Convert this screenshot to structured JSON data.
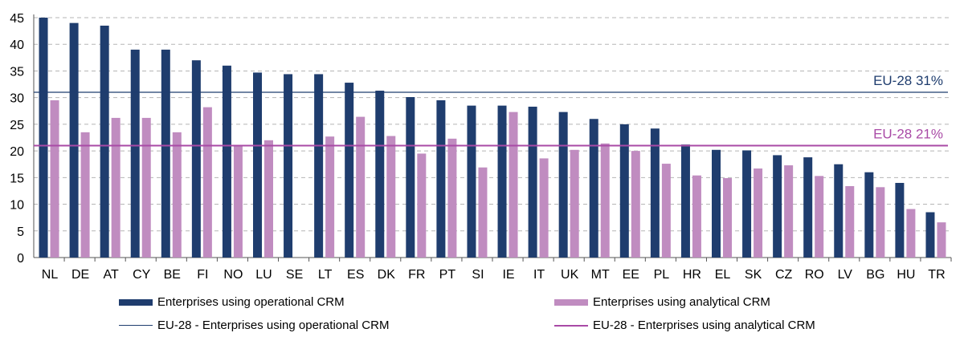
{
  "chart_data": {
    "type": "bar",
    "categories": [
      "NL",
      "DE",
      "AT",
      "CY",
      "BE",
      "FI",
      "NO",
      "LU",
      "SE",
      "LT",
      "ES",
      "DK",
      "FR",
      "PT",
      "SI",
      "IE",
      "IT",
      "UK",
      "MT",
      "EE",
      "PL",
      "HR",
      "EL",
      "SK",
      "CZ",
      "RO",
      "LV",
      "BG",
      "HU",
      "TR"
    ],
    "series": [
      {
        "name": "Enterprises using operational CRM",
        "color": "#1f3d6e",
        "values": [
          45,
          44,
          43.5,
          39,
          39,
          37,
          36,
          34.7,
          34.4,
          34.4,
          32.8,
          31.3,
          30.1,
          29.5,
          28.5,
          28.5,
          28.3,
          27.3,
          26,
          25,
          24.2,
          21.2,
          20.2,
          20.1,
          19.2,
          18.8,
          17.5,
          16,
          14,
          8.5
        ]
      },
      {
        "name": "Enterprises using analytical CRM",
        "color": "#c08cc0",
        "values": [
          29.5,
          23.5,
          26.2,
          26.2,
          23.5,
          28.2,
          21,
          22,
          null,
          22.7,
          26.4,
          22.8,
          19.5,
          22.3,
          16.9,
          27.3,
          18.6,
          20.2,
          21.4,
          20,
          17.6,
          15.4,
          14.9,
          16.7,
          17.3,
          15.3,
          13.4,
          13.2,
          9.1,
          6.6
        ]
      }
    ],
    "reference_lines": [
      {
        "name": "EU-28 - Enterprises using operational CRM",
        "value": 31,
        "label": "EU-28 31%",
        "color": "#1f3d6e"
      },
      {
        "name": "EU-28 - Enterprises using analytical CRM",
        "value": 21,
        "label": "EU-28 21%",
        "color": "#a94aa6"
      }
    ],
    "ylim": [
      0,
      45
    ],
    "yticks": [
      "0",
      "5",
      "10",
      "15",
      "20",
      "25",
      "30",
      "35",
      "40",
      "45"
    ],
    "grid": true,
    "legend_position": "bottom",
    "title": "",
    "xlabel": "",
    "ylabel": ""
  }
}
